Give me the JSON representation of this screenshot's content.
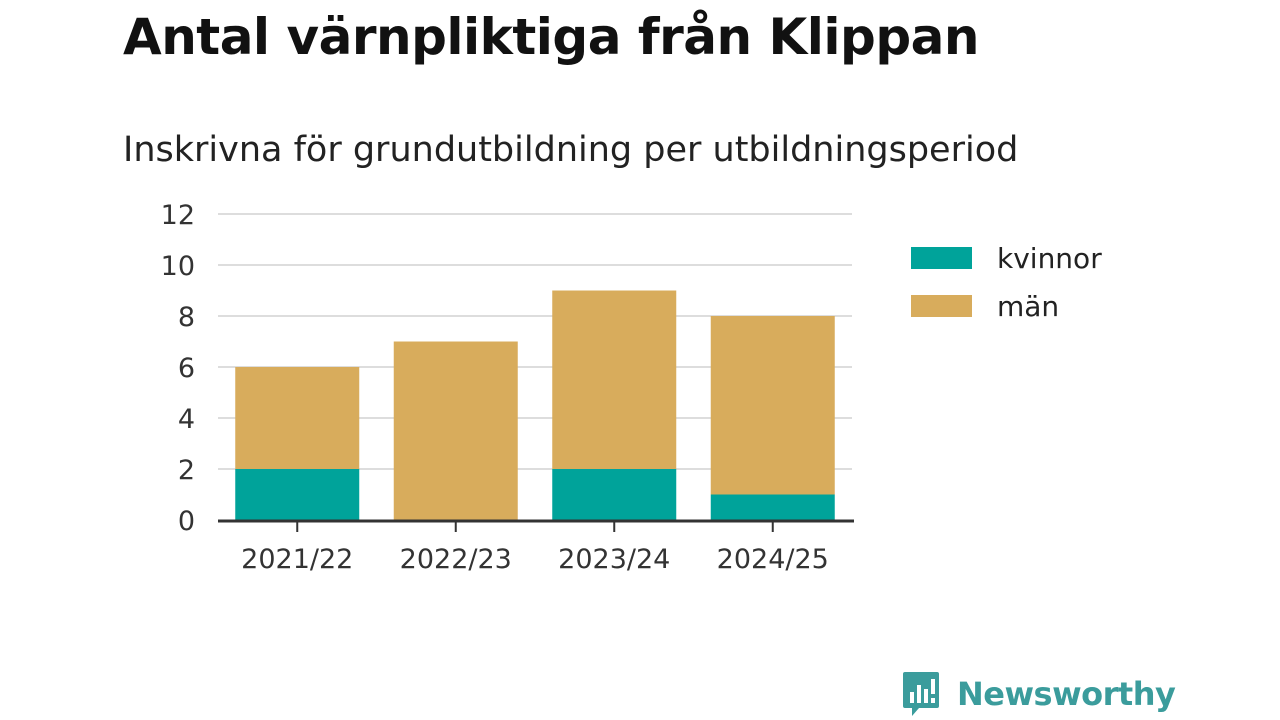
{
  "colors": {
    "kvinnor": "#00a39a",
    "man": "#d8ac5c",
    "brand": "#3b9c9c",
    "grid": "#dddddd",
    "axis": "#333333"
  },
  "brand": {
    "name": "Newsworthy",
    "icon": "bar-chart-speech-bubble-icon"
  },
  "chart_data": {
    "type": "bar",
    "stacked": true,
    "title": "Antal värnpliktiga från Klippan",
    "subtitle": "Inskrivna för grundutbildning per utbildningsperiod",
    "xlabel": "",
    "ylabel": "",
    "categories": [
      "2021/22",
      "2022/23",
      "2023/24",
      "2024/25"
    ],
    "series": [
      {
        "name": "kvinnor",
        "values": [
          2,
          0,
          2,
          1
        ]
      },
      {
        "name": "män",
        "values": [
          4,
          7,
          7,
          7
        ]
      }
    ],
    "ylim": [
      0,
      12
    ],
    "yticks": [
      0,
      2,
      4,
      6,
      8,
      10,
      12
    ],
    "grid": true,
    "legend_position": "right"
  }
}
